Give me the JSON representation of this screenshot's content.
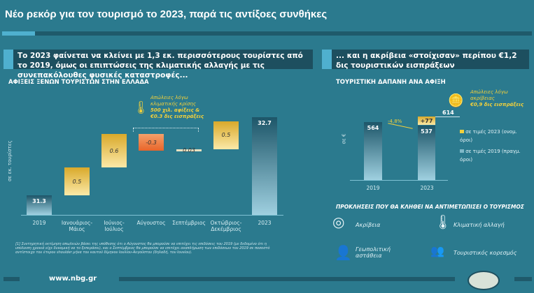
{
  "title": "Νέο ρεκόρ για τον τουρισμό το 2023, παρά τις αντίξοες συνθήκες",
  "left": {
    "headline": "Το 2023 φαίνεται να κλείνει με 1,3 εκ. περισσότερους τουρίστες από το 2019, όμως οι επιπτώσεις της κλιματικής αλλαγής με τις συνεπακόλουθες φυσικές καταστροφές...",
    "annotation": {
      "line1": "Απώλειες λόγω",
      "line2": "κλιματικής κρίσης",
      "line3": "500 χιλ. αφίξεις &",
      "line4": "€0.3 δις εισπράξεις"
    },
    "footnote": "[1] Συντηρητική εκτίμηση απωλειών βάσει της υπόθεσης ότι ο Αύγουστος θα μπορούσε να επιτύχει τις επιδόσεις του 2019 (με δεδομένο ότι η υπόλοιπη χρονιά είχε δυναμική να το ξεπεράσει), και ο Σεπτέμβριος θα μπορούσε να επιτύχει αναπλήρωση των επιδόσεων του 2019 σε ποσοστό αντίστοιχο του έτερου shoulder μήνα του καυτού δίμηνου Ιουλίου-Αυγούστου (δηλαδή, του Ιουνίου)."
  },
  "right": {
    "headline": "... και η ακρίβεια «στοίχισαν» περίπου €1,2 δις τουριστικών εισπράξεων",
    "annotation": {
      "line1": "Απώλειες λόγω",
      "line2": "ακρίβειας",
      "line3": "€0,9 δις εισπράξεις"
    },
    "legend": [
      "σε τιμές 2023 (ονομ. όροι)",
      "σε τιμές 2019 (πραγμ. όροι)"
    ],
    "change_label": "-4,8%"
  },
  "challenges": {
    "title": "ΠΡΟΚΛΗΣΕΙΣ ΠΟΥ ΘΑ ΚΛΗΘΕΙ ΝΑ ΑΝΤΙΜΕΤΩΠΙΣΕΙ Ο ΤΟΥΡΙΣΜΟΣ",
    "items": [
      "Ακρίβεια",
      "Κλιματική αλλαγή",
      "Γεωπολιτική αστάθεια",
      "Τουριστικός κορεσμός"
    ]
  },
  "footer": {
    "url": "www.nbg.gr"
  },
  "colors": {
    "background": "#2b7a8e",
    "gold": "#d9a92a",
    "negative": "#e8652a",
    "annotation": "#f2d03b"
  },
  "chart_data": [
    {
      "type": "bar",
      "subtype": "waterfall",
      "title": "ΑΦΙΞΕΙΣ ΞΕΝΩΝ ΤΟΥΡΙΣΤΩΝ ΣΤΗΝ ΕΛΛΑΔΑ",
      "ylabel": "σε εκ. τουρίστες",
      "categories": [
        "2019",
        "Ιανουάριος-Μάιος",
        "Ιούνιος-Ιούλιος",
        "Αύγουστος",
        "Σεπτέμβριος",
        "Οκτώβριος-Δεκέμβριος",
        "2023"
      ],
      "values": [
        31.3,
        0.5,
        0.6,
        -0.3,
        0.03,
        0.5,
        32.7
      ],
      "labels": [
        "31.3",
        "0.5",
        "0.6",
        "-0.3",
        "0.03",
        "0.5",
        "32.7"
      ]
    },
    {
      "type": "bar",
      "title": "ΤΟΥΡΙΣΤΙΚΗ ΔΑΠΑΝΗ ΑΝΑ ΑΦΙΞΗ",
      "ylabel": "σε €",
      "categories": [
        "2019",
        "2023"
      ],
      "series": [
        {
          "name": "σε τιμές 2019 (πραγμ. όροι)",
          "values": [
            564,
            537
          ]
        },
        {
          "name": "σε τιμές 2023 (ονομ. όροι)",
          "values": [
            null,
            77
          ]
        }
      ],
      "labels": [
        "564",
        "537",
        "+77",
        "614"
      ]
    }
  ]
}
